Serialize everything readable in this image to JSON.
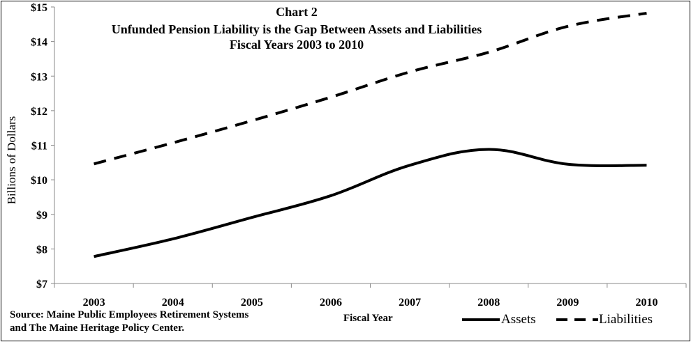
{
  "chart_data": {
    "type": "line",
    "title": "Chart 2",
    "subtitle_lines": [
      "Unfunded Pension Liability is the Gap Between Assets and Liabilities",
      "Fiscal Years 2003 to 2010"
    ],
    "xlabel": "Fiscal Year",
    "ylabel": "Billions of Dollars",
    "categories": [
      "2003",
      "2004",
      "2005",
      "2006",
      "2007",
      "2008",
      "2009",
      "2010"
    ],
    "ylim": [
      7,
      15
    ],
    "yticks": [
      7,
      8,
      9,
      10,
      11,
      12,
      13,
      14,
      15
    ],
    "ytick_labels": [
      "$7",
      "$8",
      "$9",
      "$10",
      "$11",
      "$12",
      "$13",
      "$14",
      "$15"
    ],
    "grid": false,
    "legend_position": "bottom-right",
    "series": [
      {
        "name": "Assets",
        "style": "solid",
        "color": "#000000",
        "values": [
          7.78,
          8.29,
          8.91,
          9.54,
          10.42,
          10.88,
          10.45,
          10.42
        ]
      },
      {
        "name": "Liabilities",
        "style": "dashed",
        "color": "#000000",
        "values": [
          10.46,
          11.07,
          11.71,
          12.39,
          13.12,
          13.69,
          14.44,
          14.82
        ]
      }
    ],
    "source_lines": [
      "Source: Maine Public Employees Retirement Systems",
      "and The Maine Heritage Policy Center."
    ]
  }
}
